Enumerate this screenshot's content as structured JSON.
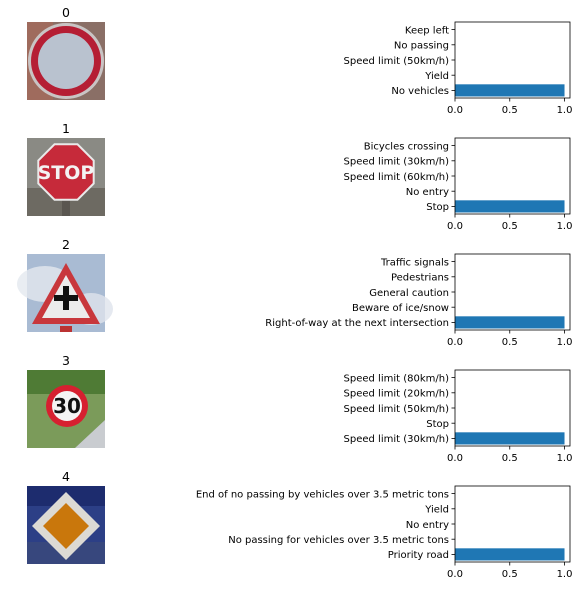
{
  "chart_data": [
    {
      "type": "bar",
      "orientation": "horizontal",
      "title": "0",
      "image_icon": "no-vehicles-sign-icon",
      "categories": [
        "Keep left",
        "No passing",
        "Speed limit (50km/h)",
        "Yield",
        "No vehicles"
      ],
      "values": [
        0.0,
        0.0,
        0.0,
        0.0,
        1.0
      ],
      "xlim": [
        0,
        1.05
      ],
      "xticks": [
        "0.0",
        "0.5",
        "1.0"
      ],
      "grid": false
    },
    {
      "type": "bar",
      "orientation": "horizontal",
      "title": "1",
      "image_icon": "stop-sign-icon",
      "image_text": "STOP",
      "categories": [
        "Bicycles crossing",
        "Speed limit (30km/h)",
        "Speed limit (60km/h)",
        "No entry",
        "Stop"
      ],
      "values": [
        0.0,
        0.0,
        0.0,
        0.0,
        1.0
      ],
      "xlim": [
        0,
        1.05
      ],
      "xticks": [
        "0.0",
        "0.5",
        "1.0"
      ],
      "grid": false
    },
    {
      "type": "bar",
      "orientation": "horizontal",
      "title": "2",
      "image_icon": "right-of-way-warning-sign-icon",
      "categories": [
        "Traffic signals",
        "Pedestrians",
        "General caution",
        "Beware of ice/snow",
        "Right-of-way at the next intersection"
      ],
      "values": [
        0.0,
        0.0,
        0.0,
        0.0,
        1.0
      ],
      "xlim": [
        0,
        1.05
      ],
      "xticks": [
        "0.0",
        "0.5",
        "1.0"
      ],
      "grid": false
    },
    {
      "type": "bar",
      "orientation": "horizontal",
      "title": "3",
      "image_icon": "speed-limit-30-sign-icon",
      "image_text": "30",
      "categories": [
        "Speed limit (80km/h)",
        "Speed limit (20km/h)",
        "Speed limit (50km/h)",
        "Stop",
        "Speed limit (30km/h)"
      ],
      "values": [
        0.0,
        0.0,
        0.0,
        0.0,
        1.0
      ],
      "xlim": [
        0,
        1.05
      ],
      "xticks": [
        "0.0",
        "0.5",
        "1.0"
      ],
      "grid": false
    },
    {
      "type": "bar",
      "orientation": "horizontal",
      "title": "4",
      "image_icon": "priority-road-sign-icon",
      "categories": [
        "End of no passing by vehicles over 3.5 metric tons",
        "Yield",
        "No entry",
        "No passing for vehicles over 3.5 metric tons",
        "Priority road"
      ],
      "values": [
        0.0,
        0.0,
        0.0,
        0.0,
        1.0
      ],
      "xlim": [
        0,
        1.05
      ],
      "xticks": [
        "0.0",
        "0.5",
        "1.0"
      ],
      "grid": false
    }
  ],
  "colors": {
    "bar": "#1f77b4",
    "axis": "#000000",
    "background": "#ffffff"
  }
}
